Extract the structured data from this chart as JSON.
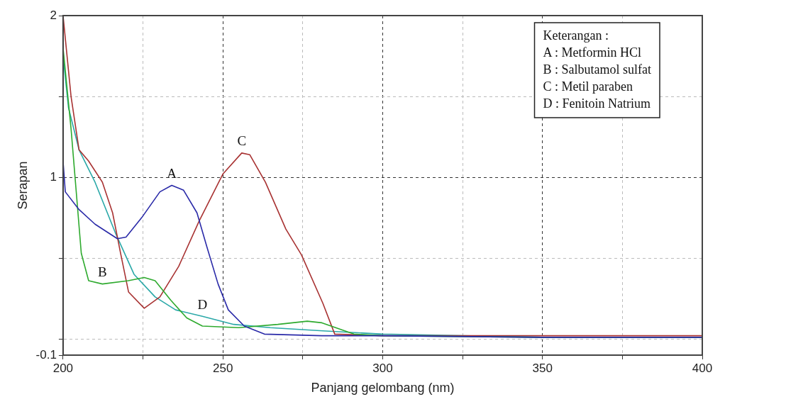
{
  "chart_data": {
    "type": "line",
    "xlabel": "Panjang gelombang (nm)",
    "ylabel": "Serapan",
    "xlim": [
      200,
      400
    ],
    "xticks": [
      200,
      {
        "value": 225,
        "label": null
      },
      250,
      {
        "value": 275,
        "label": null
      },
      300,
      {
        "value": 325,
        "label": null
      },
      350,
      {
        "value": 375,
        "label": null
      },
      400
    ],
    "ylim": [
      -0.1,
      2
    ],
    "yticks": [
      -0.1,
      {
        "value": 0,
        "label": null
      },
      {
        "value": 0.5,
        "label": null
      },
      1,
      {
        "value": 1.5,
        "label": null
      },
      2
    ],
    "grid": true,
    "legend": false,
    "marker": "none",
    "line_style": "solid",
    "series": [
      {
        "color": "#2a2aa8",
        "x": [
          200,
          200.7,
          205,
          210,
          217,
          219.7,
          224.6,
          230.3,
          234,
          237.7,
          241.9,
          245,
          248.5,
          251.7,
          256.7,
          263,
          281,
          300,
          350,
          400
        ],
        "values": [
          1.1,
          0.91,
          0.8,
          0.71,
          0.62,
          0.63,
          0.75,
          0.91,
          0.95,
          0.92,
          0.78,
          0.57,
          0.34,
          0.18,
          0.08,
          0.03,
          0.02,
          0.02,
          0.01,
          0.01
        ]
      },
      {
        "color": "#2eaa2e",
        "x": [
          200,
          202.5,
          204,
          205.7,
          208,
          212.3,
          220.4,
          225.4,
          228.8,
          233.7,
          238.7,
          243.6,
          255,
          267.2,
          276.4,
          281,
          291,
          300,
          350,
          400
        ],
        "values": [
          1.8,
          1.3,
          0.94,
          0.53,
          0.36,
          0.34,
          0.36,
          0.38,
          0.36,
          0.24,
          0.13,
          0.08,
          0.07,
          0.09,
          0.11,
          0.1,
          0.03,
          0.02,
          0.01,
          0.01
        ]
      },
      {
        "color": "#a83232",
        "x": [
          200,
          202.5,
          205,
          208,
          212.3,
          215.5,
          218,
          220.5,
          225.4,
          230.3,
          236.2,
          242.6,
          250,
          255.9,
          258.4,
          263.3,
          269.7,
          274.6,
          281.3,
          285,
          300,
          350,
          400
        ],
        "values": [
          2,
          1.5,
          1.17,
          1.1,
          0.97,
          0.78,
          0.53,
          0.29,
          0.19,
          0.26,
          0.45,
          0.73,
          1.02,
          1.15,
          1.14,
          0.97,
          0.68,
          0.52,
          0.22,
          0.03,
          0.02,
          0.02,
          0.02
        ]
      },
      {
        "color": "#2aa8a8",
        "x": [
          200,
          201.7,
          205,
          210,
          216.5,
          222.2,
          228.8,
          235.2,
          243.6,
          253.4,
          264.8,
          281.3,
          300,
          350,
          400
        ],
        "values": [
          1.75,
          1.43,
          1.17,
          0.97,
          0.65,
          0.4,
          0.26,
          0.18,
          0.14,
          0.09,
          0.07,
          0.05,
          0.03,
          0.01,
          0.01
        ]
      }
    ],
    "annotations": [
      {
        "text": "A",
        "x": 234,
        "y": 0.95
      },
      {
        "text": "B",
        "x": 212.3,
        "y": 0.34
      },
      {
        "text": "C",
        "x": 255.9,
        "y": 1.15
      },
      {
        "text": "D",
        "x": 243.6,
        "y": 0.14
      },
      "Keterangan :",
      "A : Metformin HCl",
      "B : Salbutamol sulfat",
      "C : Metil paraben",
      "D : Fenitoin Natrium"
    ]
  }
}
